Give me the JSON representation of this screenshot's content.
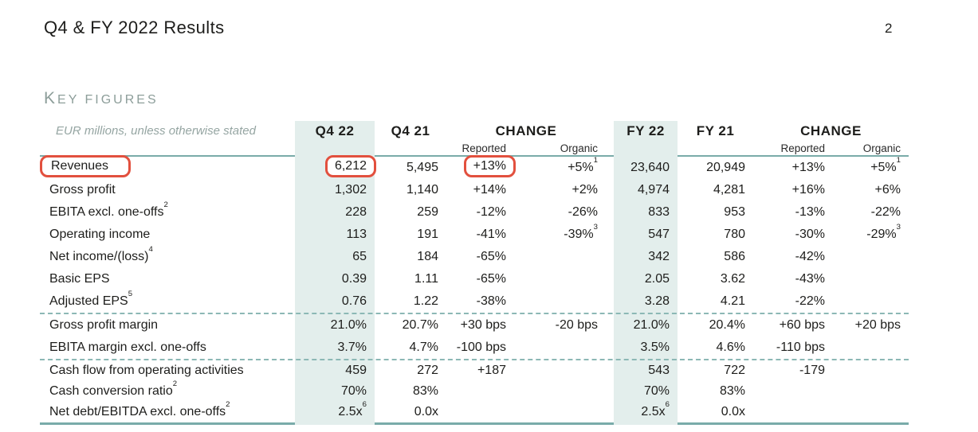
{
  "page": {
    "title": "Q4 & FY 2022 Results",
    "page_number": "2"
  },
  "section": {
    "heading": "Key figures",
    "subtitle": "EUR millions, unless otherwise stated"
  },
  "colors": {
    "accent_teal": "#79aba9",
    "dashed_teal": "#8cb8b5",
    "column_band": "#e3eeec",
    "highlight_red": "#e2503e",
    "muted_heading": "#8d9e9a",
    "text": "#1d1d1b"
  },
  "table": {
    "headers": {
      "q4_22": "Q4 22",
      "q4_21": "Q4 21",
      "change": "CHANGE",
      "reported": "Reported",
      "organic": "Organic",
      "fy_22": "FY 22",
      "fy_21": "FY 21"
    },
    "column_keys": [
      "q4-22",
      "q4-21",
      "change-q4-reported",
      "change-q4-organic",
      "fy-22",
      "fy-21",
      "change-fy-reported",
      "change-fy-organic"
    ],
    "sections": [
      {
        "rows": [
          {
            "label": "Revenues",
            "values": [
              "6,212",
              "5,495",
              "+13%",
              "+5%¹",
              "23,640",
              "20,949",
              "+13%",
              "+5%¹"
            ],
            "highlight": {
              "label": true,
              "cells": [
                0,
                2
              ]
            }
          },
          {
            "label": "Gross profit",
            "values": [
              "1,302",
              "1,140",
              "+14%",
              "+2%",
              "4,974",
              "4,281",
              "+16%",
              "+6%"
            ]
          },
          {
            "label": "EBITA excl. one-offs²",
            "values": [
              "228",
              "259",
              "-12%",
              "-26%",
              "833",
              "953",
              "-13%",
              "-22%"
            ]
          },
          {
            "label": "Operating income",
            "values": [
              "113",
              "191",
              "-41%",
              "-39%³",
              "547",
              "780",
              "-30%",
              "-29%³"
            ]
          },
          {
            "label": "Net income/(loss)⁴",
            "values": [
              "65",
              "184",
              "-65%",
              "",
              "342",
              "586",
              "-42%",
              ""
            ]
          },
          {
            "label": "Basic EPS",
            "values": [
              "0.39",
              "1.11",
              "-65%",
              "",
              "2.05",
              "3.62",
              "-43%",
              ""
            ]
          },
          {
            "label": "Adjusted EPS⁵",
            "values": [
              "0.76",
              "1.22",
              "-38%",
              "",
              "3.28",
              "4.21",
              "-22%",
              ""
            ]
          }
        ]
      },
      {
        "rows": [
          {
            "label": "Gross profit margin",
            "values": [
              "21.0%",
              "20.7%",
              "+30 bps",
              "-20 bps",
              "21.0%",
              "20.4%",
              "+60 bps",
              "+20 bps"
            ]
          },
          {
            "label": "EBITA margin excl. one-offs",
            "values": [
              "3.7%",
              "4.7%",
              "-100 bps",
              "",
              "3.5%",
              "4.6%",
              "-110 bps",
              ""
            ]
          }
        ]
      },
      {
        "rows": [
          {
            "label": "Cash flow from operating activities",
            "values": [
              "459",
              "272",
              "+187",
              "",
              "543",
              "722",
              "-179",
              ""
            ]
          },
          {
            "label": "Cash conversion ratio²",
            "values": [
              "70%",
              "83%",
              "",
              "",
              "70%",
              "83%",
              "",
              ""
            ]
          },
          {
            "label": "Net debt/EBITDA excl. one-offs²",
            "values": [
              "2.5x⁶",
              "0.0x",
              "",
              "",
              "2.5x⁶",
              "0.0x",
              "",
              ""
            ]
          }
        ]
      }
    ]
  }
}
